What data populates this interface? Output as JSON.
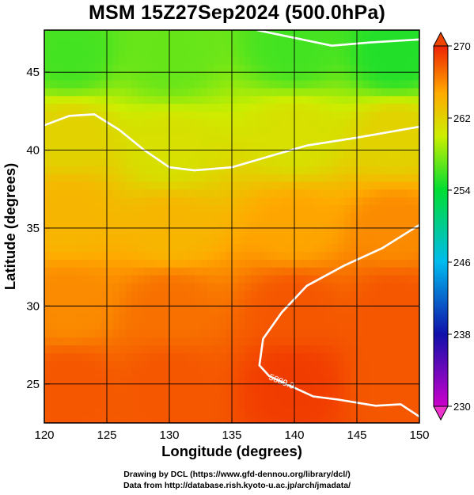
{
  "chart_data": {
    "type": "heatmap",
    "title": "MSM 15Z27Sep2024 (500.0hPa)",
    "xlabel": "Longitude (degrees)",
    "ylabel": "Latitude  (degrees)",
    "xlim": [
      120,
      150
    ],
    "ylim": [
      22.5,
      47.7
    ],
    "xticks": [
      120,
      125,
      130,
      135,
      140,
      145,
      150
    ],
    "yticks": [
      25,
      30,
      35,
      40,
      45
    ],
    "grid": true,
    "colorbar": {
      "range": [
        230,
        270
      ],
      "ticks": [
        230,
        238,
        246,
        254,
        262,
        270
      ],
      "placement": "right",
      "extend": "both"
    },
    "field_samples": [
      {
        "lon": 122,
        "lat": 46,
        "value": 256
      },
      {
        "lon": 130,
        "lat": 46,
        "value": 257
      },
      {
        "lon": 140,
        "lat": 46.5,
        "value": 256
      },
      {
        "lon": 148,
        "lat": 46,
        "value": 255
      },
      {
        "lon": 122,
        "lat": 41,
        "value": 262
      },
      {
        "lon": 130,
        "lat": 40,
        "value": 261
      },
      {
        "lon": 140,
        "lat": 41,
        "value": 261
      },
      {
        "lon": 148,
        "lat": 41,
        "value": 262
      },
      {
        "lon": 122,
        "lat": 36,
        "value": 264
      },
      {
        "lon": 130,
        "lat": 35,
        "value": 264
      },
      {
        "lon": 140,
        "lat": 35,
        "value": 265
      },
      {
        "lon": 148,
        "lat": 35,
        "value": 266
      },
      {
        "lon": 122,
        "lat": 30,
        "value": 266
      },
      {
        "lon": 130,
        "lat": 30,
        "value": 267
      },
      {
        "lon": 140,
        "lat": 30,
        "value": 268
      },
      {
        "lon": 148,
        "lat": 30,
        "value": 268
      },
      {
        "lon": 122,
        "lat": 25,
        "value": 268
      },
      {
        "lon": 130,
        "lat": 25,
        "value": 268
      },
      {
        "lon": 140,
        "lat": 25,
        "value": 269
      },
      {
        "lon": 148,
        "lat": 25,
        "value": 268
      }
    ],
    "contours": [
      {
        "label": "",
        "points": [
          [
            137,
            47.7
          ],
          [
            140,
            47.2
          ],
          [
            143,
            46.7
          ],
          [
            146,
            46.9
          ],
          [
            150,
            47.1
          ]
        ]
      },
      {
        "label": "",
        "points": [
          [
            120,
            41.6
          ],
          [
            122,
            42.2
          ],
          [
            124,
            42.3
          ],
          [
            126,
            41.3
          ],
          [
            128,
            40.0
          ],
          [
            130,
            38.9
          ],
          [
            132,
            38.7
          ],
          [
            135,
            38.9
          ],
          [
            138,
            39.6
          ],
          [
            141,
            40.3
          ],
          [
            145,
            40.8
          ],
          [
            150,
            41.5
          ]
        ]
      },
      {
        "label": "5880.0",
        "points": [
          [
            150,
            35.2
          ],
          [
            147,
            33.7
          ],
          [
            144,
            32.6
          ],
          [
            141,
            31.3
          ],
          [
            139,
            29.6
          ],
          [
            137.5,
            27.9
          ],
          [
            137.2,
            26.2
          ],
          [
            138,
            25.5
          ],
          [
            141.5,
            24.2
          ],
          [
            143.5,
            24.0
          ],
          [
            146.5,
            23.6
          ],
          [
            148.5,
            23.7
          ],
          [
            150,
            22.9
          ]
        ]
      }
    ]
  },
  "credits": {
    "line1": "Drawing by DCL (https://www.gfd-dennou.org/library/dcl/)",
    "line2": "Data from http://database.rish.kyoto-u.ac.jp/arch/jmadata/"
  }
}
